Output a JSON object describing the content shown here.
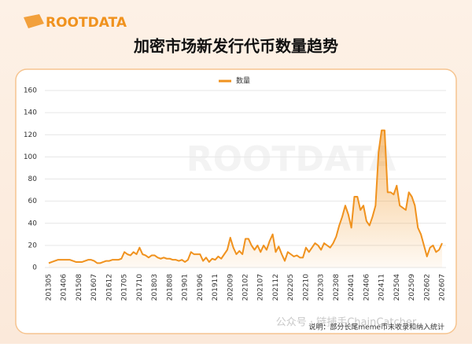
{
  "brand": "ROOTDATA",
  "watermark": "ROOTDATA",
  "footer": {
    "note": "说明：部分长尾meme币未收录和纳入统计",
    "source": "公众号 · 链捕手ChainCatcher"
  },
  "chart_data": {
    "type": "area",
    "title": "加密市场新发行代币数量趋势",
    "categories": [
      "201305",
      null,
      null,
      null,
      null,
      "201406",
      null,
      null,
      null,
      null,
      "201508",
      null,
      null,
      null,
      null,
      "201607",
      null,
      null,
      null,
      null,
      "201612",
      null,
      null,
      null,
      null,
      "201705",
      null,
      null,
      null,
      null,
      "201710",
      null,
      null,
      null,
      null,
      "201803",
      null,
      null,
      null,
      null,
      "201808",
      null,
      null,
      null,
      null,
      "201901",
      null,
      null,
      null,
      null,
      "201906",
      null,
      null,
      null,
      null,
      "201911",
      null,
      null,
      null,
      null,
      "202009",
      null,
      null,
      null,
      null,
      "202102",
      null,
      null,
      null,
      null,
      "202107",
      null,
      null,
      null,
      null,
      "202112",
      null,
      null,
      null,
      null,
      "202205",
      null,
      null,
      null,
      null,
      "202210",
      null,
      null,
      null,
      null,
      "202303",
      null,
      null,
      null,
      null,
      "202308",
      null,
      null,
      null,
      null,
      "202401",
      null,
      null,
      null,
      null,
      "202406",
      null,
      null,
      null,
      null,
      "202411",
      null,
      null,
      null,
      null,
      "202504",
      null,
      null,
      null,
      null,
      "202509",
      null,
      null,
      null,
      null,
      "202602",
      null,
      null,
      null,
      null,
      "202607"
    ],
    "series": [
      {
        "name": "数量",
        "color": "#f0921e",
        "values": [
          4,
          5,
          6,
          7,
          7,
          7,
          7,
          7,
          6,
          5,
          5,
          5,
          6,
          7,
          7,
          6,
          4,
          4,
          5,
          6,
          6,
          7,
          7,
          7,
          8,
          14,
          12,
          11,
          14,
          12,
          18,
          12,
          11,
          9,
          11,
          11,
          9,
          8,
          9,
          8,
          8,
          7,
          7,
          6,
          7,
          5,
          7,
          14,
          12,
          12,
          12,
          6,
          9,
          5,
          8,
          7,
          10,
          8,
          12,
          16,
          27,
          18,
          12,
          15,
          12,
          26,
          26,
          20,
          16,
          20,
          14,
          20,
          16,
          24,
          30,
          14,
          19,
          12,
          6,
          14,
          12,
          10,
          11,
          9,
          9,
          18,
          14,
          18,
          22,
          20,
          16,
          22,
          20,
          18,
          22,
          28,
          38,
          46,
          56,
          48,
          36,
          64,
          64,
          52,
          56,
          42,
          38,
          46,
          56,
          104,
          124,
          124,
          68,
          68,
          66,
          74,
          56,
          54,
          52,
          68,
          64,
          56,
          36,
          30,
          20,
          10,
          18,
          20,
          14,
          16,
          22
        ]
      }
    ],
    "ylim": [
      0,
      160
    ],
    "yticks": [
      0,
      20,
      40,
      60,
      80,
      100,
      120,
      140,
      160
    ],
    "grid": true,
    "legend": "top"
  }
}
